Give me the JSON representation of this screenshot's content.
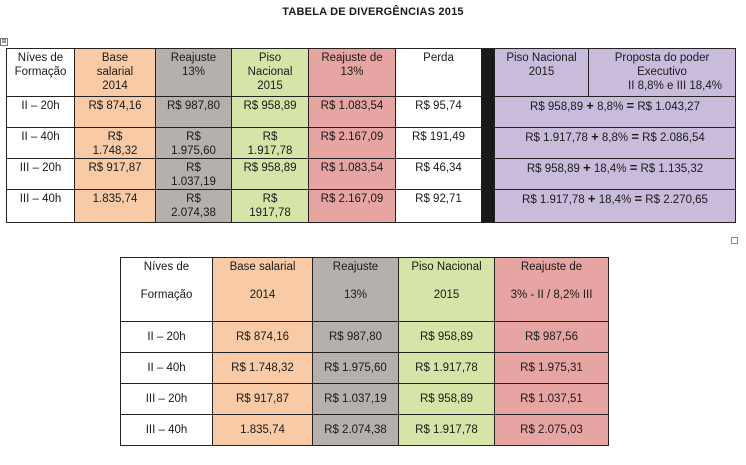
{
  "title": "TABELA DE DIVERGÊNCIAS  2015",
  "table1": {
    "headers": {
      "nivel": [
        "Níves de",
        "Formação"
      ],
      "base": [
        "Base",
        "salarial",
        "2014"
      ],
      "reajuste": [
        "Reajuste",
        "13%"
      ],
      "piso": [
        "Piso",
        "Nacional",
        "2015"
      ],
      "reajuste_pct": [
        "Reajuste de",
        "13%"
      ],
      "perda": "Perda",
      "piso_nacional": [
        "Piso Nacional",
        "2015"
      ],
      "proposta": [
        "Proposta do poder",
        "Executivo",
        "II 8,8% e III 18,4%"
      ]
    },
    "rows": [
      {
        "nivel": "II – 20h",
        "base": [
          "R$ 874,16"
        ],
        "reajuste": [
          "R$ 987,80"
        ],
        "piso": [
          "R$ 958,89"
        ],
        "reajuste_pct": "R$ 1.083,54",
        "perda": "R$ 95,74",
        "piso_prop": "R$ 958,89",
        "pct": "8,8%",
        "total": "R$ 1.043,27"
      },
      {
        "nivel": "II – 40h",
        "base": [
          "R$",
          "1.748,32"
        ],
        "reajuste": [
          "R$",
          "1.975,60"
        ],
        "piso": [
          "R$",
          "1.917,78"
        ],
        "reajuste_pct": "R$ 2.167,09",
        "perda": "R$ 191,49",
        "piso_prop": "R$ 1.917,78",
        "pct": "8,8%",
        "total": "R$ 2.086,54"
      },
      {
        "nivel": "III – 20h",
        "base": [
          "R$ 917,87"
        ],
        "reajuste": [
          "R$",
          "1.037,19"
        ],
        "piso": [
          "R$ 958,89"
        ],
        "reajuste_pct": "R$ 1.083,54",
        "perda": "R$ 46,34",
        "piso_prop": "R$ 958,89",
        "pct": "18,4%",
        "total": "R$ 1.135,32"
      },
      {
        "nivel": "III – 40h",
        "base": [
          "1.835,74"
        ],
        "reajuste": [
          "R$",
          "2.074,38"
        ],
        "piso": [
          "R$",
          "1917,78"
        ],
        "reajuste_pct": "R$ 2.167,09",
        "perda": "R$ 92,71",
        "piso_prop": "R$ 1.917,78",
        "pct": "18,4%",
        "total": "R$ 2.270,65"
      }
    ],
    "plus": "+",
    "equals": "="
  },
  "table2": {
    "headers": {
      "nivel": [
        "Níves de",
        "Formação"
      ],
      "base": [
        "Base salarial",
        "2014"
      ],
      "reajuste": [
        "Reajuste",
        "13%"
      ],
      "piso": [
        "Piso Nacional",
        "2015"
      ],
      "reajuste_pct": [
        "Reajuste de",
        "3% - II  /  8,2% III"
      ]
    },
    "rows": [
      {
        "nivel": "II – 20h",
        "base": "R$ 874,16",
        "reajuste": "R$ 987,80",
        "piso": "R$ 958,89",
        "reajuste_pct": "R$ 987,56"
      },
      {
        "nivel": "II – 40h",
        "base": "R$ 1.748,32",
        "reajuste": "R$ 1.975,60",
        "piso": "R$ 1.917,78",
        "reajuste_pct": "R$ 1.975,31"
      },
      {
        "nivel": "III – 20h",
        "base": "R$ 917,87",
        "reajuste": "R$ 1.037,19",
        "piso": "R$ 958,89",
        "reajuste_pct": "R$ 1.037,51"
      },
      {
        "nivel": "III – 40h",
        "base": "1.835,74",
        "reajuste": "R$ 2.074,38",
        "piso": "R$ 1.917,78",
        "reajuste_pct": "R$ 2.075,03"
      }
    ]
  },
  "handles": {
    "move_icon": "move-handle-icon",
    "move_glyph": "⊞",
    "resize_icon": "resize-handle-icon"
  }
}
